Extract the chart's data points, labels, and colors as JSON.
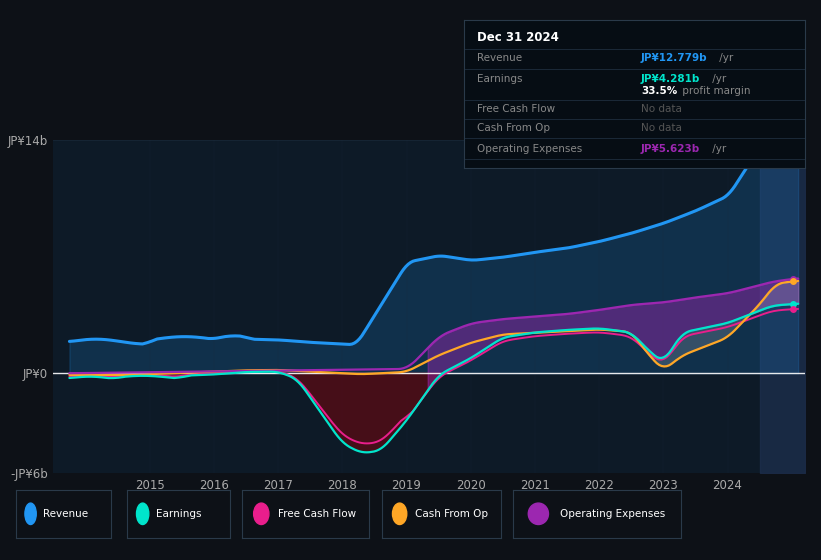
{
  "bg_color": "#0d1117",
  "plot_bg_color": "#0d1a27",
  "grid_color": "#1a2a3a",
  "zero_line_color": "#ffffff",
  "ylim": [
    -6,
    14
  ],
  "ytick_labels": [
    "-JP¥6b",
    "JP¥0",
    "JP¥14b"
  ],
  "ytick_vals": [
    -6,
    0,
    14
  ],
  "xtick_years": [
    2015,
    2016,
    2017,
    2018,
    2019,
    2020,
    2021,
    2022,
    2023,
    2024
  ],
  "series_colors": {
    "revenue": "#2196F3",
    "earnings": "#00E5CC",
    "fcf": "#E91E8C",
    "cash_from_op": "#FFA726",
    "op_expenses": "#9C27B0"
  },
  "tooltip": {
    "date": "Dec 31 2024",
    "revenue_label": "Revenue",
    "revenue_val": "JP¥12.779b",
    "revenue_suffix": " /yr",
    "earnings_label": "Earnings",
    "earnings_val": "JP¥4.281b",
    "earnings_suffix": " /yr",
    "profit_pct": "33.5%",
    "profit_text": " profit margin",
    "fcf_label": "Free Cash Flow",
    "fcf_val": "No data",
    "cash_label": "Cash From Op",
    "cash_val": "No data",
    "opex_label": "Operating Expenses",
    "opex_val": "JP¥5.623b",
    "opex_suffix": " /yr"
  },
  "legend_items": [
    {
      "label": "Revenue",
      "color": "#2196F3"
    },
    {
      "label": "Earnings",
      "color": "#00E5CC"
    },
    {
      "label": "Free Cash Flow",
      "color": "#E91E8C"
    },
    {
      "label": "Cash From Op",
      "color": "#FFA726"
    },
    {
      "label": "Operating Expenses",
      "color": "#9C27B0"
    }
  ]
}
